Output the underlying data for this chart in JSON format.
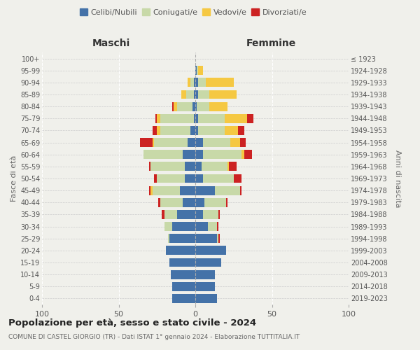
{
  "age_groups": [
    "0-4",
    "5-9",
    "10-14",
    "15-19",
    "20-24",
    "25-29",
    "30-34",
    "35-39",
    "40-44",
    "45-49",
    "50-54",
    "55-59",
    "60-64",
    "65-69",
    "70-74",
    "75-79",
    "80-84",
    "85-89",
    "90-94",
    "95-99",
    "100+"
  ],
  "birth_years": [
    "2019-2023",
    "2014-2018",
    "2009-2013",
    "2004-2008",
    "1999-2003",
    "1994-1998",
    "1989-1993",
    "1984-1988",
    "1979-1983",
    "1974-1978",
    "1969-1973",
    "1964-1968",
    "1959-1963",
    "1954-1958",
    "1949-1953",
    "1944-1948",
    "1939-1943",
    "1934-1938",
    "1929-1933",
    "1924-1928",
    "≤ 1923"
  ],
  "maschi": {
    "celibi": [
      15,
      15,
      16,
      17,
      19,
      17,
      15,
      12,
      8,
      10,
      7,
      7,
      8,
      5,
      3,
      1,
      2,
      1,
      1,
      0,
      0
    ],
    "coniugati": [
      0,
      0,
      0,
      0,
      0,
      1,
      5,
      8,
      15,
      18,
      18,
      22,
      26,
      22,
      20,
      22,
      10,
      5,
      2,
      0,
      0
    ],
    "vedovi": [
      0,
      0,
      0,
      0,
      0,
      0,
      0,
      0,
      0,
      1,
      0,
      0,
      0,
      1,
      2,
      2,
      2,
      3,
      2,
      0,
      0
    ],
    "divorziati": [
      0,
      0,
      0,
      0,
      0,
      0,
      0,
      2,
      1,
      1,
      2,
      1,
      0,
      8,
      3,
      1,
      1,
      0,
      0,
      0,
      0
    ]
  },
  "femmine": {
    "nubili": [
      14,
      13,
      13,
      17,
      20,
      14,
      8,
      5,
      6,
      13,
      5,
      4,
      5,
      5,
      2,
      2,
      1,
      2,
      2,
      1,
      0
    ],
    "coniugate": [
      0,
      0,
      0,
      0,
      0,
      1,
      6,
      10,
      14,
      16,
      20,
      17,
      25,
      18,
      17,
      17,
      8,
      7,
      5,
      1,
      0
    ],
    "vedove": [
      0,
      0,
      0,
      0,
      0,
      0,
      0,
      0,
      0,
      0,
      0,
      1,
      2,
      6,
      9,
      15,
      12,
      18,
      18,
      3,
      0
    ],
    "divorziate": [
      0,
      0,
      0,
      0,
      0,
      1,
      1,
      1,
      1,
      1,
      5,
      5,
      5,
      4,
      4,
      4,
      0,
      0,
      0,
      0,
      0
    ]
  },
  "colors": {
    "celibi": "#4472a8",
    "coniugati": "#c8d9a8",
    "vedovi": "#f5c842",
    "divorziati": "#cc2222"
  },
  "title": "Popolazione per età, sesso e stato civile - 2024",
  "subtitle": "COMUNE DI CASTEL GIORGIO (TR) - Dati ISTAT 1° gennaio 2024 - Elaborazione TUTTITALIA.IT",
  "xlabel_left": "Maschi",
  "xlabel_right": "Femmine",
  "ylabel_left": "Fasce di età",
  "ylabel_right": "Anni di nascita",
  "xlim": 100,
  "legend_labels": [
    "Celibi/Nubili",
    "Coniugati/e",
    "Vedovi/e",
    "Divorziati/e"
  ],
  "bg_color": "#f0f0eb"
}
